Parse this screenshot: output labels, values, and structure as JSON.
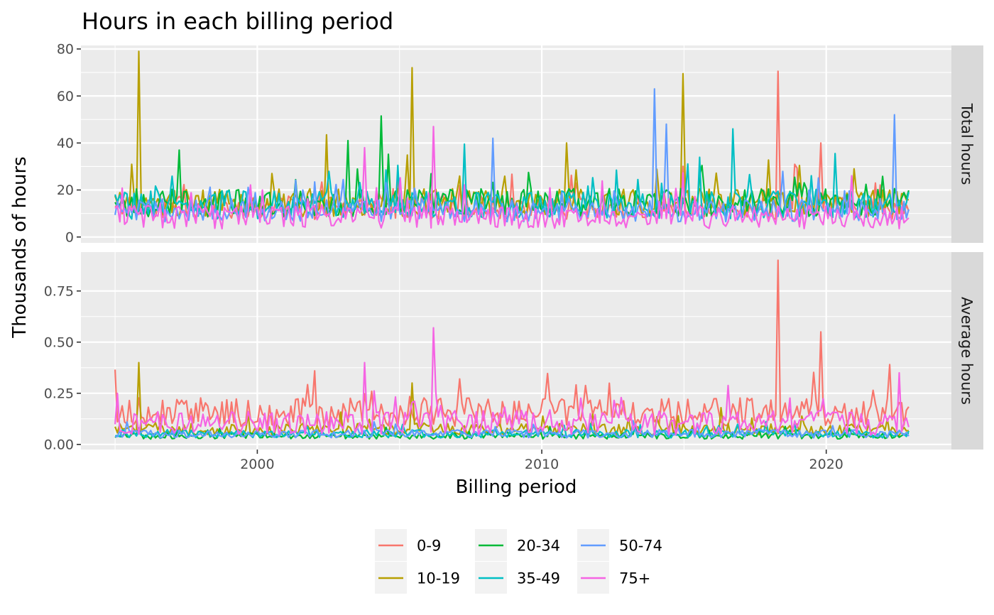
{
  "chart_data": {
    "type": "line",
    "title": "Hours in each billing period",
    "xlabel": "Billing period",
    "ylabel": "Thousands of hours",
    "x_range": [
      1995,
      2022.9
    ],
    "x_ticks": [
      2000,
      2010,
      2020
    ],
    "x_tick_labels": [
      "2000",
      "2010",
      "2020"
    ],
    "grid": true,
    "legend_position": "bottom",
    "legend_entries": [
      "0-9",
      "10-19",
      "20-34",
      "35-49",
      "50-74",
      "75+"
    ],
    "colors": {
      "0-9": "#F8766D",
      "10-19": "#B79F00",
      "20-34": "#00BA38",
      "35-49": "#00BFC4",
      "50-74": "#619CFF",
      "75+": "#F564E3"
    },
    "panels": [
      {
        "strip": "Total hours",
        "ylim": [
          -2.5,
          81.5
        ],
        "y_ticks": [
          0,
          20,
          40,
          60,
          80
        ],
        "y_tick_labels": [
          "0",
          "20",
          "40",
          "60",
          "80"
        ],
        "baseline": {
          "0-9": 12,
          "10-19": 14,
          "20-34": 14,
          "35-49": 13,
          "50-74": 11,
          "75+": 8
        },
        "spread": {
          "0-9": 5,
          "10-19": 6,
          "20-34": 6,
          "35-49": 6,
          "50-74": 5,
          "75+": 5
        },
        "peaks": [
          {
            "series": "10-19",
            "x": 1995.85,
            "y": 79
          },
          {
            "series": "10-19",
            "x": 2005.45,
            "y": 72
          },
          {
            "series": "10-19",
            "x": 2014.95,
            "y": 69.5
          },
          {
            "series": "10-19",
            "x": 2002.45,
            "y": 43.5
          },
          {
            "series": "10-19",
            "x": 2010.85,
            "y": 40
          },
          {
            "series": "0-9",
            "x": 2018.3,
            "y": 70.5
          },
          {
            "series": "0-9",
            "x": 2019.85,
            "y": 40
          },
          {
            "series": "20-34",
            "x": 2004.35,
            "y": 51.5
          },
          {
            "series": "20-34",
            "x": 2003.2,
            "y": 41
          },
          {
            "series": "20-34",
            "x": 1997.25,
            "y": 37
          },
          {
            "series": "35-49",
            "x": 2007.3,
            "y": 39.5
          },
          {
            "series": "35-49",
            "x": 2016.75,
            "y": 46
          },
          {
            "series": "35-49",
            "x": 2020.3,
            "y": 35.5
          },
          {
            "series": "50-74",
            "x": 2013.95,
            "y": 63
          },
          {
            "series": "50-74",
            "x": 2014.35,
            "y": 48
          },
          {
            "series": "50-74",
            "x": 2022.4,
            "y": 52
          },
          {
            "series": "50-74",
            "x": 2008.25,
            "y": 42
          },
          {
            "series": "75+",
            "x": 2006.2,
            "y": 47
          },
          {
            "series": "75+",
            "x": 2003.8,
            "y": 38
          }
        ]
      },
      {
        "strip": "Average hours",
        "ylim": [
          -0.025,
          0.94
        ],
        "y_ticks": [
          0,
          0.25,
          0.5,
          0.75
        ],
        "y_tick_labels": [
          "0.00",
          "0.25",
          "0.50",
          "0.75"
        ],
        "baseline": {
          "0-9": 0.15,
          "10-19": 0.07,
          "20-34": 0.04,
          "35-49": 0.05,
          "50-74": 0.05,
          "75+": 0.1
        },
        "spread": {
          "0-9": 0.07,
          "10-19": 0.03,
          "20-34": 0.015,
          "35-49": 0.02,
          "50-74": 0.02,
          "75+": 0.06
        },
        "peaks": [
          {
            "series": "0-9",
            "x": 2018.3,
            "y": 0.9
          },
          {
            "series": "0-9",
            "x": 2019.85,
            "y": 0.55
          },
          {
            "series": "0-9",
            "x": 2022.25,
            "y": 0.39
          },
          {
            "series": "75+",
            "x": 2006.2,
            "y": 0.57
          },
          {
            "series": "75+",
            "x": 2003.8,
            "y": 0.4
          },
          {
            "series": "75+",
            "x": 2022.6,
            "y": 0.35
          },
          {
            "series": "10-19",
            "x": 1995.85,
            "y": 0.4
          },
          {
            "series": "10-19",
            "x": 2005.45,
            "y": 0.3
          }
        ]
      }
    ]
  }
}
